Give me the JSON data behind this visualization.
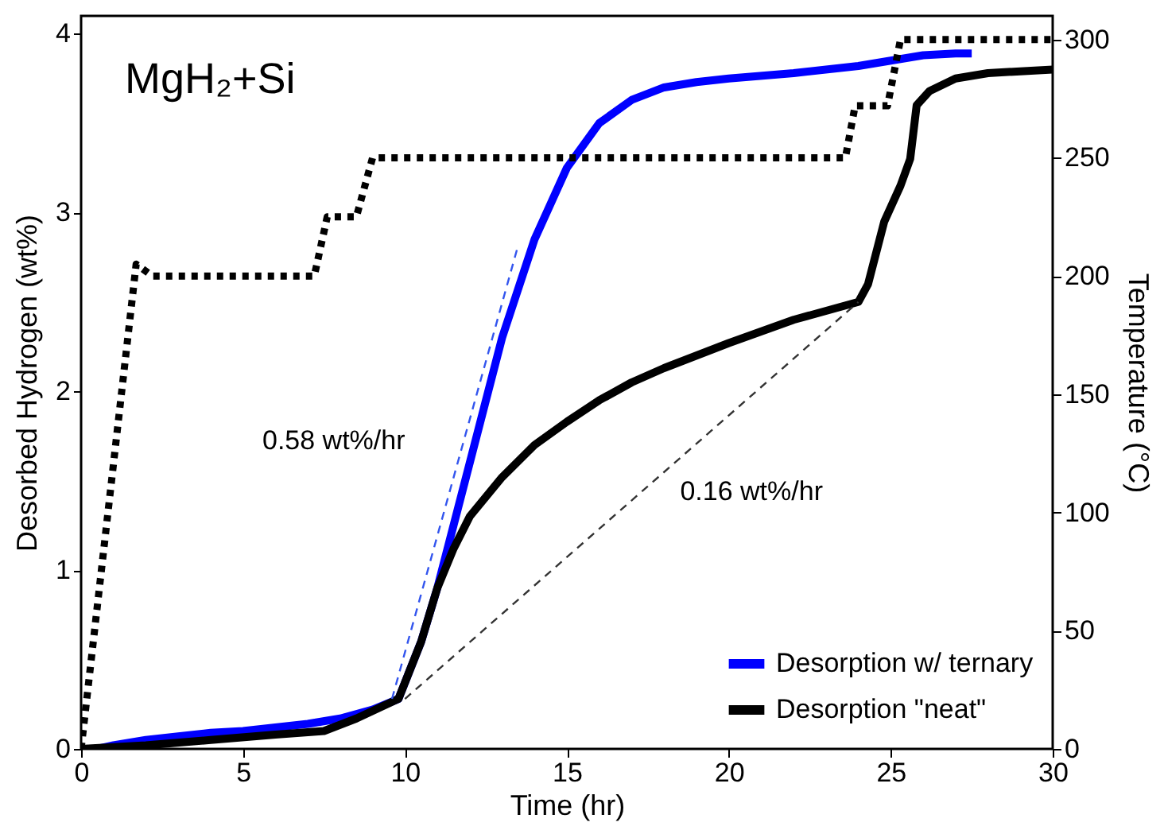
{
  "chart_data": {
    "type": "line",
    "xlabel": "Time (hr)",
    "ylabel": "Desorbed Hydrogen (wt%)",
    "y2label": "Temperature (°C)",
    "xlim": [
      0,
      30
    ],
    "xticks": [
      0,
      5,
      10,
      15,
      20,
      25,
      30
    ],
    "ylim": [
      0,
      4.1
    ],
    "yticks": [
      0,
      1,
      2,
      3,
      4
    ],
    "y2lim": [
      0,
      310
    ],
    "y2ticks": [
      0,
      50,
      100,
      150,
      200,
      250,
      300
    ],
    "grid": false,
    "legend": "bottom right",
    "marker": "none",
    "annotations": [
      "MgH₂+Si",
      "0.58 wt%/hr",
      "0.16 wt%/hr"
    ],
    "series": [
      {
        "name": "Desorption w/ ternary",
        "color": "#0000ff",
        "line_style": "solid",
        "x": [
          0,
          0.5,
          1,
          2,
          3,
          4,
          5,
          6,
          7,
          8,
          9,
          9.8,
          10.5,
          11,
          12,
          13,
          14,
          15,
          16,
          17,
          18,
          19,
          20,
          22,
          24,
          25,
          26,
          27,
          27.5
        ],
        "values": [
          0,
          0,
          0.02,
          0.05,
          0.07,
          0.09,
          0.1,
          0.12,
          0.14,
          0.17,
          0.22,
          0.28,
          0.6,
          0.9,
          1.6,
          2.3,
          2.85,
          3.25,
          3.5,
          3.63,
          3.7,
          3.73,
          3.75,
          3.78,
          3.82,
          3.85,
          3.88,
          3.89,
          3.89
        ]
      },
      {
        "name": "Desorption \"neat\"",
        "color": "#000000",
        "line_style": "solid",
        "x": [
          0,
          2,
          4,
          6,
          7.5,
          8.5,
          9.8,
          10.5,
          11,
          11.5,
          12,
          13,
          14,
          15,
          16,
          17,
          18,
          20,
          22,
          24,
          24.3,
          24.8,
          25.3,
          25.6,
          25.8,
          26.2,
          27,
          28,
          29,
          30
        ],
        "values": [
          0,
          0.02,
          0.05,
          0.08,
          0.1,
          0.17,
          0.28,
          0.6,
          0.9,
          1.12,
          1.3,
          1.52,
          1.7,
          1.83,
          1.95,
          2.05,
          2.13,
          2.27,
          2.4,
          2.5,
          2.6,
          2.95,
          3.15,
          3.3,
          3.6,
          3.68,
          3.75,
          3.78,
          3.79,
          3.8
        ]
      },
      {
        "color": "#000000",
        "line_style": "dotted",
        "axis": "y2",
        "x": [
          0,
          1.7,
          2.2,
          7.2,
          7.6,
          8.5,
          9.0,
          23.6,
          23.9,
          24.9,
          25.3,
          30
        ],
        "values": [
          0,
          205,
          200,
          200,
          225,
          225,
          250,
          250,
          272,
          272,
          300,
          300
        ]
      },
      {
        "color": "#3355ee",
        "line_style": "dashed",
        "x": [
          9.6,
          13.5
        ],
        "values": [
          0.28,
          2.82
        ]
      },
      {
        "color": "#333333",
        "line_style": "dashed",
        "x": [
          10,
          24
        ],
        "values": [
          0.28,
          2.5
        ]
      }
    ]
  }
}
